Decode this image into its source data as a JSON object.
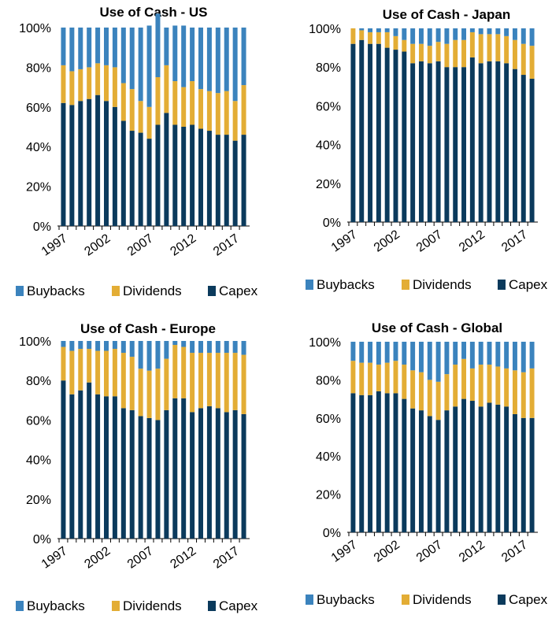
{
  "colors": {
    "buybacks": "#3b83bd",
    "dividends": "#e3ad35",
    "capex": "#0b3a5c"
  },
  "chart_data": [
    {
      "type": "bar",
      "stacked": true,
      "title": "Use of Cash - US",
      "x": [
        1997,
        1998,
        1999,
        2000,
        2001,
        2002,
        2003,
        2004,
        2005,
        2006,
        2007,
        2008,
        2009,
        2010,
        2011,
        2012,
        2013,
        2014,
        2015,
        2016,
        2017,
        2018
      ],
      "x_tick_labels": [
        "1997",
        "2002",
        "2007",
        "2012",
        "2017"
      ],
      "y_tick_labels": [
        "0%",
        "20%",
        "40%",
        "60%",
        "80%",
        "100%"
      ],
      "ylim": [
        0,
        100
      ],
      "legend": "bottom",
      "series": [
        {
          "name": "Buybacks",
          "values": [
            19,
            22,
            21,
            20,
            18,
            19,
            20,
            28,
            31,
            37,
            41,
            32,
            19,
            28,
            31,
            27,
            31,
            32,
            33,
            32,
            37,
            29
          ]
        },
        {
          "name": "Dividends",
          "values": [
            19,
            17,
            16,
            16,
            16,
            18,
            20,
            19,
            21,
            16,
            16,
            24,
            24,
            22,
            20,
            22,
            20,
            20,
            21,
            22,
            20,
            25
          ]
        },
        {
          "name": "Capex",
          "values": [
            62,
            61,
            63,
            64,
            66,
            63,
            60,
            53,
            48,
            47,
            44,
            51,
            57,
            51,
            50,
            51,
            49,
            48,
            46,
            46,
            43,
            46
          ]
        }
      ]
    },
    {
      "type": "bar",
      "stacked": true,
      "title": "Use of Cash - Japan",
      "x": [
        1997,
        1998,
        1999,
        2000,
        2001,
        2002,
        2003,
        2004,
        2005,
        2006,
        2007,
        2008,
        2009,
        2010,
        2011,
        2012,
        2013,
        2014,
        2015,
        2016,
        2017,
        2018
      ],
      "x_tick_labels": [
        "1997",
        "2002",
        "2007",
        "2012",
        "2017"
      ],
      "y_tick_labels": [
        "0%",
        "20%",
        "40%",
        "60%",
        "80%",
        "100%"
      ],
      "ylim": [
        0,
        100
      ],
      "legend": "bottom",
      "series": [
        {
          "name": "Buybacks",
          "values": [
            0,
            1,
            2,
            2,
            2,
            4,
            6,
            8,
            8,
            9,
            7,
            8,
            6,
            6,
            2,
            3,
            3,
            3,
            4,
            6,
            8,
            9
          ]
        },
        {
          "name": "Dividends",
          "values": [
            8,
            5,
            6,
            6,
            8,
            7,
            6,
            10,
            9,
            9,
            10,
            12,
            14,
            14,
            13,
            15,
            14,
            14,
            14,
            15,
            16,
            17
          ]
        },
        {
          "name": "Capex",
          "values": [
            92,
            94,
            92,
            92,
            90,
            89,
            88,
            82,
            83,
            82,
            83,
            80,
            80,
            80,
            85,
            82,
            83,
            83,
            82,
            79,
            76,
            74
          ]
        }
      ]
    },
    {
      "type": "bar",
      "stacked": true,
      "title": "Use of Cash - Europe",
      "x": [
        1997,
        1998,
        1999,
        2000,
        2001,
        2002,
        2003,
        2004,
        2005,
        2006,
        2007,
        2008,
        2009,
        2010,
        2011,
        2012,
        2013,
        2014,
        2015,
        2016,
        2017,
        2018
      ],
      "x_tick_labels": [
        "1997",
        "2002",
        "2007",
        "2012",
        "2017"
      ],
      "y_tick_labels": [
        "0%",
        "20%",
        "40%",
        "60%",
        "80%",
        "100%"
      ],
      "ylim": [
        0,
        100
      ],
      "legend": "bottom",
      "series": [
        {
          "name": "Buybacks",
          "values": [
            3,
            5,
            4,
            4,
            5,
            5,
            4,
            6,
            8,
            14,
            15,
            14,
            9,
            2,
            3,
            6,
            6,
            6,
            6,
            6,
            6,
            7
          ]
        },
        {
          "name": "Dividends",
          "values": [
            17,
            22,
            21,
            17,
            22,
            23,
            24,
            28,
            27,
            24,
            24,
            26,
            26,
            27,
            26,
            30,
            28,
            27,
            28,
            30,
            29,
            30
          ]
        },
        {
          "name": "Capex",
          "values": [
            80,
            73,
            75,
            79,
            73,
            72,
            72,
            66,
            65,
            62,
            61,
            60,
            65,
            71,
            71,
            64,
            66,
            67,
            66,
            64,
            65,
            63
          ]
        }
      ]
    },
    {
      "type": "bar",
      "stacked": true,
      "title": "Use of Cash - Global",
      "x": [
        1997,
        1998,
        1999,
        2000,
        2001,
        2002,
        2003,
        2004,
        2005,
        2006,
        2007,
        2008,
        2009,
        2010,
        2011,
        2012,
        2013,
        2014,
        2015,
        2016,
        2017,
        2018
      ],
      "x_tick_labels": [
        "1997",
        "2002",
        "2007",
        "2012",
        "2017"
      ],
      "y_tick_labels": [
        "0%",
        "20%",
        "40%",
        "60%",
        "80%",
        "100%"
      ],
      "ylim": [
        0,
        100
      ],
      "legend": "bottom",
      "series": [
        {
          "name": "Buybacks",
          "values": [
            10,
            11,
            11,
            12,
            11,
            10,
            12,
            15,
            16,
            20,
            21,
            17,
            12,
            9,
            14,
            12,
            12,
            13,
            14,
            15,
            16,
            14
          ]
        },
        {
          "name": "Dividends",
          "values": [
            17,
            17,
            17,
            14,
            16,
            17,
            18,
            20,
            20,
            19,
            20,
            19,
            22,
            21,
            17,
            22,
            20,
            20,
            20,
            23,
            24,
            26
          ]
        },
        {
          "name": "Capex",
          "values": [
            73,
            72,
            72,
            74,
            73,
            73,
            70,
            65,
            64,
            61,
            59,
            64,
            66,
            70,
            69,
            66,
            68,
            67,
            66,
            62,
            60,
            60
          ]
        }
      ]
    }
  ]
}
